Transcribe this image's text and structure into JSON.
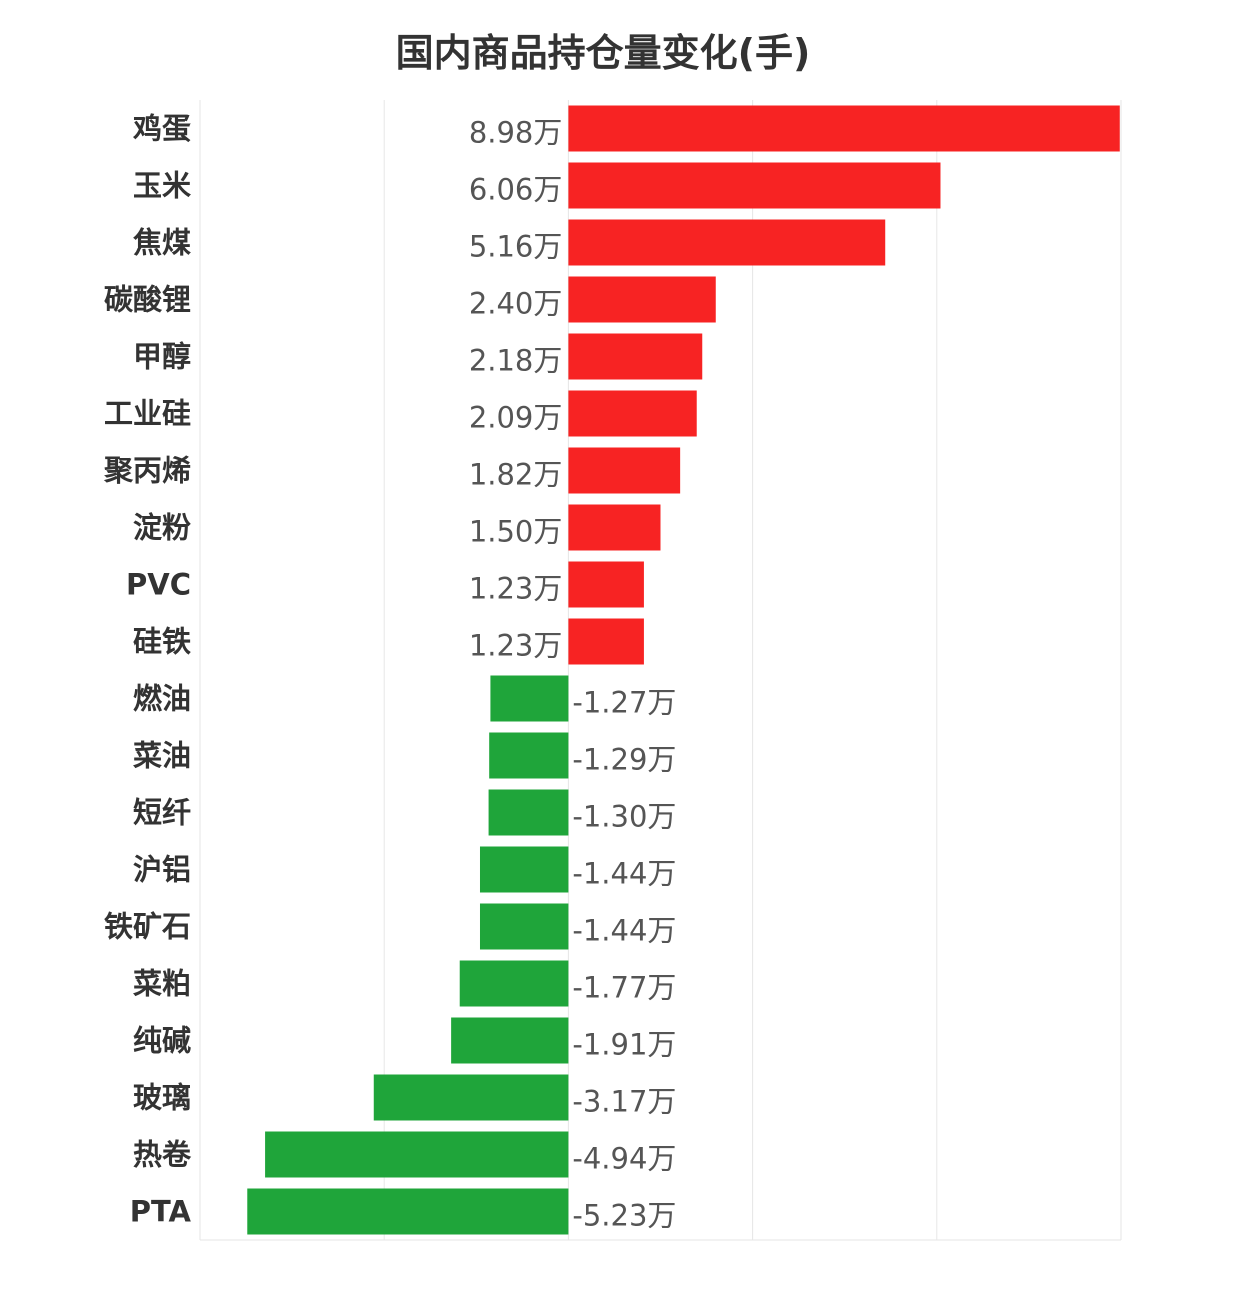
{
  "chart_data": {
    "type": "bar",
    "orientation": "horizontal",
    "title": "国内商品持仓量变化(手)",
    "unit_suffix": "万",
    "categories": [
      "鸡蛋",
      "玉米",
      "焦煤",
      "碳酸锂",
      "甲醇",
      "工业硅",
      "聚丙烯",
      "淀粉",
      "PVC",
      "硅铁",
      "燃油",
      "菜油",
      "短纤",
      "沪铝",
      "铁矿石",
      "菜粕",
      "纯碱",
      "玻璃",
      "热卷",
      "PTA"
    ],
    "values": [
      8.98,
      6.06,
      5.16,
      2.4,
      2.18,
      2.09,
      1.82,
      1.5,
      1.23,
      1.23,
      -1.27,
      -1.29,
      -1.3,
      -1.44,
      -1.44,
      -1.77,
      -1.91,
      -3.17,
      -4.94,
      -5.23
    ],
    "value_labels": [
      "8.98万",
      "6.06万",
      "5.16万",
      "2.40万",
      "2.18万",
      "2.09万",
      "1.82万",
      "1.50万",
      "1.23万",
      "1.23万",
      "-1.27万",
      "-1.29万",
      "-1.30万",
      "-1.44万",
      "-1.44万",
      "-1.77万",
      "-1.91万",
      "-3.17万",
      "-4.94万",
      "-5.23万"
    ],
    "xlim": [
      -6,
      9
    ],
    "grid": true,
    "colors": {
      "positive": "#f72323",
      "negative": "#1fa53a"
    }
  }
}
